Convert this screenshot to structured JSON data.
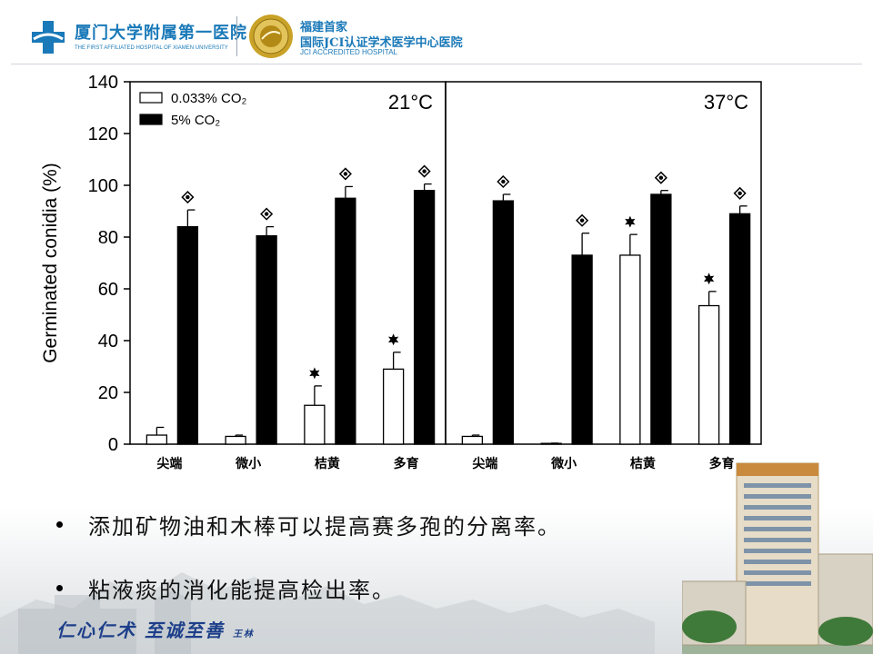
{
  "header": {
    "hospital_name_cn": "厦门大学附属第一医院",
    "hospital_name_en": "THE FIRST AFFILIATED HOSPITAL OF XIAMEN UNIVERSITY",
    "jci_line1": "福建首家",
    "jci_line2": "国际JCI认证学术医学中心医院",
    "jci_line3": "JCI ACCREDITED HOSPITAL",
    "brand_color": "#1a79b8",
    "accent_color": "#c9a227"
  },
  "chart_data": {
    "type": "bar",
    "ylabel": "Germinated conidia (%)",
    "ylim": [
      0,
      140
    ],
    "yticks": [
      0,
      20,
      40,
      60,
      80,
      100,
      120,
      140
    ],
    "legend": {
      "placement": "top-left",
      "entries": [
        {
          "label": "0.033% CO₂",
          "fill": "#ffffff"
        },
        {
          "label": "5% CO₂",
          "fill": "#000000"
        }
      ]
    },
    "panels": [
      {
        "title": "21°C",
        "categories": [
          "尖端",
          "微小",
          "桔黄",
          "多育"
        ],
        "series": [
          {
            "name": "0.033% CO₂",
            "values": [
              3.5,
              3,
              15,
              29
            ],
            "errors": [
              3,
              0.5,
              7.5,
              6.5
            ],
            "markers": [
              false,
              false,
              true,
              true
            ]
          },
          {
            "name": "5% CO₂",
            "values": [
              84,
              80.5,
              95,
              98
            ],
            "errors": [
              6.5,
              3.5,
              4.5,
              2.5
            ],
            "markers": [
              true,
              true,
              true,
              true
            ]
          }
        ]
      },
      {
        "title": "37°C",
        "categories": [
          "尖端",
          "微小",
          "桔黄",
          "多育"
        ],
        "series": [
          {
            "name": "0.033% CO₂",
            "values": [
              3,
              0.3,
              73,
              53.5
            ],
            "errors": [
              0.5,
              0.1,
              8,
              5.5
            ],
            "markers": [
              false,
              false,
              true,
              true
            ]
          },
          {
            "name": "5% CO₂",
            "values": [
              94,
              73,
              96.5,
              89
            ],
            "errors": [
              2.5,
              8.5,
              1.5,
              3
            ],
            "markers": [
              true,
              true,
              true,
              true
            ]
          }
        ]
      }
    ]
  },
  "bullets": [
    "添加矿物油和木棒可以提高赛多孢的分离率。",
    "粘液痰的消化能提高检出率。"
  ],
  "footer": {
    "motto": "仁心仁术  至诚至善",
    "motto_sign": "王林"
  }
}
